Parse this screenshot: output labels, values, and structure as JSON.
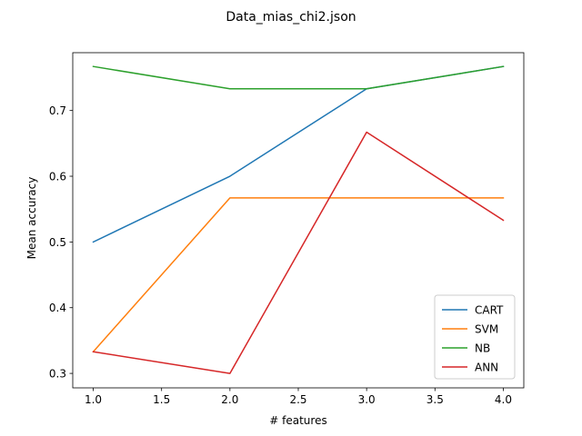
{
  "chart_data": {
    "type": "line",
    "title": "Data_mias_chi2.json",
    "xlabel": "# features",
    "ylabel": "Mean accuracy",
    "x": [
      1.0,
      2.0,
      3.0,
      4.0
    ],
    "xlim": [
      0.85,
      4.15
    ],
    "ylim": [
      0.278,
      0.788
    ],
    "xticks": [
      1.0,
      1.5,
      2.0,
      2.5,
      3.0,
      3.5,
      4.0
    ],
    "xtick_labels": [
      "1.0",
      "1.5",
      "2.0",
      "2.5",
      "3.0",
      "3.5",
      "4.0"
    ],
    "yticks": [
      0.3,
      0.4,
      0.5,
      0.6,
      0.7
    ],
    "ytick_labels": [
      "0.3",
      "0.4",
      "0.5",
      "0.6",
      "0.7"
    ],
    "grid": false,
    "legend_position": "lower-right",
    "series": [
      {
        "name": "CART",
        "color": "#1f77b4",
        "values": [
          0.5,
          0.6,
          0.733,
          0.767
        ]
      },
      {
        "name": "SVM",
        "color": "#ff7f0e",
        "values": [
          0.333,
          0.567,
          0.567,
          0.567
        ]
      },
      {
        "name": "NB",
        "color": "#2ca02c",
        "values": [
          0.767,
          0.733,
          0.733,
          0.767
        ]
      },
      {
        "name": "ANN",
        "color": "#d62728",
        "values": [
          0.333,
          0.3,
          0.667,
          0.533
        ]
      }
    ]
  }
}
